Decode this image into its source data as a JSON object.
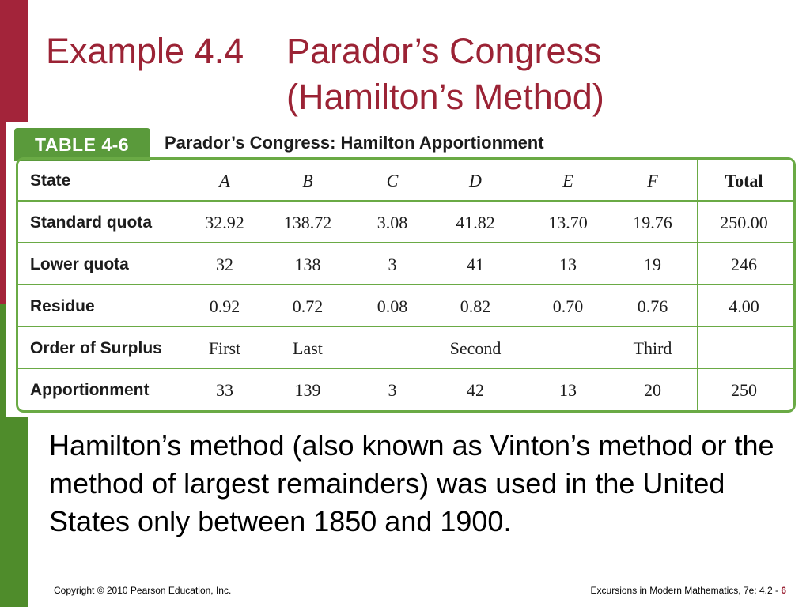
{
  "title": {
    "example": "Example 4.4",
    "line1": "Parador’s Congress",
    "line2": "(Hamilton’s Method)"
  },
  "table": {
    "tag": "TABLE  4-6",
    "caption": "Parador’s Congress: Hamilton Apportionment",
    "header": [
      "State",
      "A",
      "B",
      "C",
      "D",
      "E",
      "F",
      "Total"
    ],
    "rows": [
      {
        "label": "Standard quota",
        "values": [
          "32.92",
          "138.72",
          "3.08",
          "41.82",
          "13.70",
          "19.76",
          "250.00"
        ]
      },
      {
        "label": "Lower quota",
        "values": [
          "32",
          "138",
          "3",
          "41",
          "13",
          "19",
          "246"
        ]
      },
      {
        "label": "Residue",
        "values": [
          "0.92",
          "0.72",
          "0.08",
          "0.82",
          "0.70",
          "0.76",
          "4.00"
        ]
      },
      {
        "label": "Order of Surplus",
        "values": [
          "First",
          "Last",
          "",
          "Second",
          "",
          "Third",
          ""
        ]
      },
      {
        "label": "Apportionment",
        "values": [
          "33",
          "139",
          "3",
          "42",
          "13",
          "20",
          "250"
        ]
      }
    ]
  },
  "paragraph": "Hamilton’s method (also known as Vinton’s method or the method of largest remainders) was used in the United States only between 1850 and 1900.",
  "footer": {
    "copyright": "Copyright © 2010 Pearson Education, Inc.",
    "source": "Excursions in Modern Mathematics, 7e: 4.2 - ",
    "page": "6"
  },
  "colors": {
    "title": "#9b2335",
    "left_bar_top": "#a3243a",
    "left_bar_bottom": "#4f8c2b",
    "table_border": "#6aaa45",
    "table_tag": "#5a9a3b"
  }
}
